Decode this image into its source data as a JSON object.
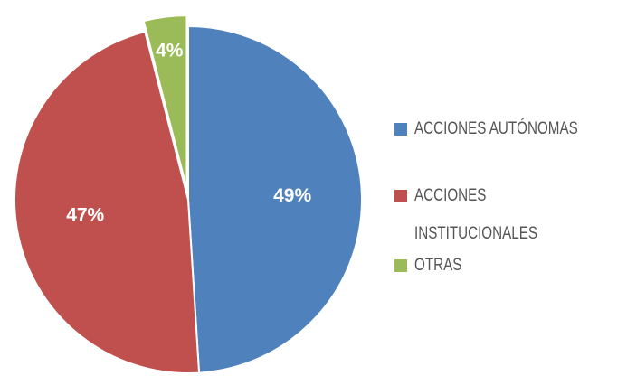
{
  "chart_data": {
    "type": "pie",
    "categories": [
      "ACCIONES AUTÓNOMAS",
      "ACCIONES INSTITUCIONALES",
      "OTRAS"
    ],
    "values": [
      49,
      47,
      4
    ],
    "value_labels": [
      "49%",
      "47%",
      "4%"
    ],
    "colors": [
      "#4f81bd",
      "#c0504d",
      "#9bbb59"
    ],
    "legend": "right"
  }
}
